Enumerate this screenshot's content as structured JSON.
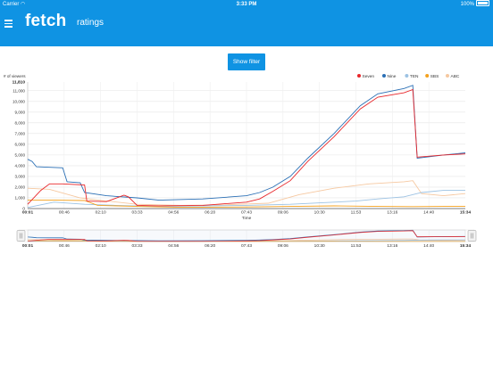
{
  "status_bar": {
    "carrier": "Carrier",
    "time": "3:33 PM",
    "battery": "100%"
  },
  "app_bar": {
    "logo": "fetch",
    "title": "ratings"
  },
  "filter_button": {
    "label": "Show filter"
  },
  "colors": {
    "primary": "#0f93e3"
  },
  "chart_data": {
    "type": "line",
    "ylabel": "# of viewers",
    "xlabel": "Time",
    "ylim": [
      0,
      11810
    ],
    "y_ticks": [
      "1,000",
      "2,000",
      "3,000",
      "4,000",
      "5,000",
      "6,000",
      "7,000",
      "8,000",
      "9,000",
      "10,000",
      "11,000"
    ],
    "y_top_label": "11,810",
    "y_zero_label": "0",
    "x_ticks": [
      "00:01",
      "00:46",
      "02:10",
      "03:33",
      "04:56",
      "06:20",
      "07:43",
      "09:06",
      "10:30",
      "11:53",
      "13:16",
      "14:40",
      "15:34"
    ],
    "legend_position": "top-right",
    "grid": true,
    "series": [
      {
        "name": "Seven",
        "color": "#e8262a",
        "points": [
          [
            0,
            400
          ],
          [
            0.03,
            1700
          ],
          [
            0.05,
            2300
          ],
          [
            0.08,
            2300
          ],
          [
            0.13,
            2200
          ],
          [
            0.135,
            700
          ],
          [
            0.18,
            650
          ],
          [
            0.22,
            1250
          ],
          [
            0.23,
            1100
          ],
          [
            0.25,
            300
          ],
          [
            0.3,
            260
          ],
          [
            0.4,
            300
          ],
          [
            0.5,
            600
          ],
          [
            0.53,
            900
          ],
          [
            0.56,
            1600
          ],
          [
            0.6,
            2600
          ],
          [
            0.64,
            4400
          ],
          [
            0.7,
            6700
          ],
          [
            0.76,
            9300
          ],
          [
            0.8,
            10400
          ],
          [
            0.86,
            10800
          ],
          [
            0.88,
            11100
          ],
          [
            0.89,
            4800
          ],
          [
            0.95,
            5000
          ],
          [
            1,
            5100
          ]
        ]
      },
      {
        "name": "Nine",
        "color": "#2a6fb5",
        "points": [
          [
            0,
            4600
          ],
          [
            0.01,
            4400
          ],
          [
            0.02,
            3900
          ],
          [
            0.08,
            3800
          ],
          [
            0.09,
            2500
          ],
          [
            0.12,
            2400
          ],
          [
            0.13,
            1500
          ],
          [
            0.18,
            1200
          ],
          [
            0.25,
            1000
          ],
          [
            0.3,
            780
          ],
          [
            0.4,
            900
          ],
          [
            0.5,
            1200
          ],
          [
            0.53,
            1500
          ],
          [
            0.56,
            2000
          ],
          [
            0.6,
            3000
          ],
          [
            0.64,
            4700
          ],
          [
            0.7,
            7000
          ],
          [
            0.76,
            9600
          ],
          [
            0.8,
            10700
          ],
          [
            0.86,
            11200
          ],
          [
            0.88,
            11500
          ],
          [
            0.89,
            4700
          ],
          [
            0.95,
            5000
          ],
          [
            1,
            5200
          ]
        ]
      },
      {
        "name": "TEN",
        "color": "#9cc2e3",
        "points": [
          [
            0,
            100
          ],
          [
            0.06,
            600
          ],
          [
            0.13,
            400
          ],
          [
            0.2,
            300
          ],
          [
            0.3,
            200
          ],
          [
            0.4,
            250
          ],
          [
            0.5,
            300
          ],
          [
            0.6,
            400
          ],
          [
            0.7,
            600
          ],
          [
            0.75,
            700
          ],
          [
            0.8,
            900
          ],
          [
            0.86,
            1100
          ],
          [
            0.9,
            1500
          ],
          [
            0.95,
            1700
          ],
          [
            1,
            1700
          ]
        ]
      },
      {
        "name": "SBS",
        "color": "#f4a11d",
        "points": [
          [
            0,
            800
          ],
          [
            0.05,
            800
          ],
          [
            0.13,
            750
          ],
          [
            0.16,
            300
          ],
          [
            0.25,
            200
          ],
          [
            0.35,
            120
          ],
          [
            0.5,
            150
          ],
          [
            0.6,
            200
          ],
          [
            0.7,
            250
          ],
          [
            0.8,
            200
          ],
          [
            0.88,
            180
          ],
          [
            0.95,
            200
          ],
          [
            1,
            200
          ]
        ]
      },
      {
        "name": "ABC",
        "color": "#f6c8a0",
        "points": [
          [
            0,
            1900
          ],
          [
            0.05,
            1800
          ],
          [
            0.12,
            1000
          ],
          [
            0.16,
            800
          ],
          [
            0.25,
            400
          ],
          [
            0.35,
            300
          ],
          [
            0.45,
            350
          ],
          [
            0.55,
            500
          ],
          [
            0.62,
            1300
          ],
          [
            0.7,
            1900
          ],
          [
            0.78,
            2300
          ],
          [
            0.86,
            2500
          ],
          [
            0.88,
            2600
          ],
          [
            0.9,
            1400
          ],
          [
            0.95,
            1200
          ],
          [
            1,
            1400
          ]
        ]
      }
    ]
  }
}
